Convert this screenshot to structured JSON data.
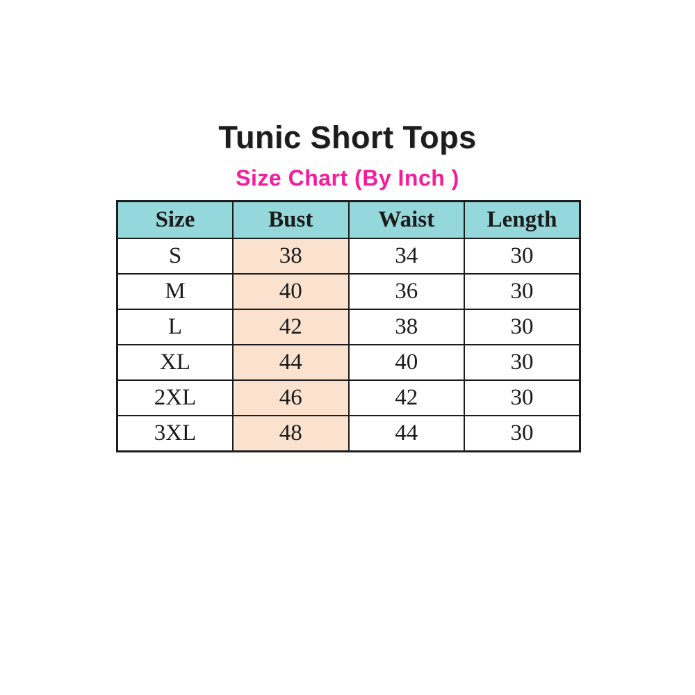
{
  "title": "Tunic Short Tops",
  "subtitle": "Size Chart (By Inch )",
  "colors": {
    "page-bg": "#ffffff",
    "title-color": "#1c1c1c",
    "subtitle-color": "#f41c9c",
    "header-bg": "#94d8db",
    "highlight-bg": "#fae2cf",
    "border-color": "#1c1c1c"
  },
  "chart_data": {
    "type": "table",
    "title": "Tunic Short Tops",
    "subtitle": "Size Chart (By Inch )",
    "unit": "inch",
    "columns": [
      "Size",
      "Bust",
      "Waist",
      "Length"
    ],
    "rows": [
      [
        "S",
        "38",
        "34",
        "30"
      ],
      [
        "M",
        "40",
        "36",
        "30"
      ],
      [
        "L",
        "42",
        "38",
        "30"
      ],
      [
        "XL",
        "44",
        "40",
        "30"
      ],
      [
        "2XL",
        "46",
        "42",
        "30"
      ],
      [
        "3XL",
        "48",
        "44",
        "30"
      ]
    ],
    "highlighted_column": "Bust",
    "layout_hints": {
      "header_background": "#94d8db",
      "highlight_background": "#fae2cf",
      "equal_column_widths": true
    }
  }
}
